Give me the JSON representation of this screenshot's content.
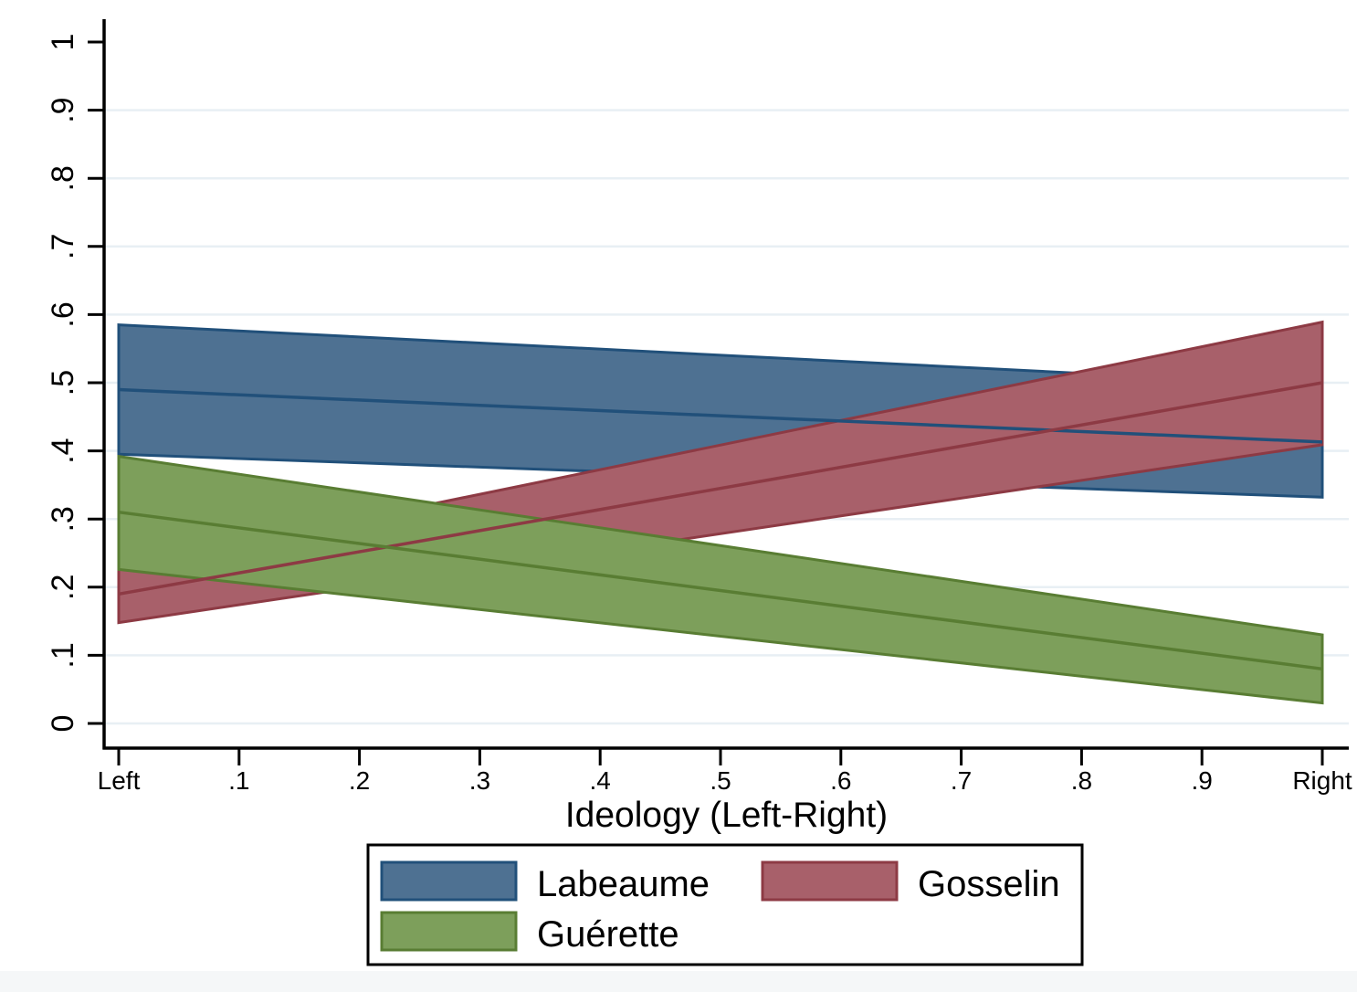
{
  "chart_data": {
    "type": "area",
    "title": "",
    "xlabel": "Ideology (Left-Right)",
    "ylabel": "",
    "xlim": [
      0,
      1
    ],
    "ylim": [
      0,
      1
    ],
    "x": [
      0,
      1
    ],
    "x_ticks": [
      {
        "v": 0.0,
        "label": "Left"
      },
      {
        "v": 0.1,
        "label": ".1"
      },
      {
        "v": 0.2,
        "label": ".2"
      },
      {
        "v": 0.3,
        "label": ".3"
      },
      {
        "v": 0.4,
        "label": ".4"
      },
      {
        "v": 0.5,
        "label": ".5"
      },
      {
        "v": 0.6,
        "label": ".6"
      },
      {
        "v": 0.7,
        "label": ".7"
      },
      {
        "v": 0.8,
        "label": ".8"
      },
      {
        "v": 0.9,
        "label": ".9"
      },
      {
        "v": 1.0,
        "label": "Right"
      }
    ],
    "y_ticks": [
      {
        "v": 0.0,
        "label": "0"
      },
      {
        "v": 0.1,
        "label": ".1"
      },
      {
        "v": 0.2,
        "label": ".2"
      },
      {
        "v": 0.3,
        "label": ".3"
      },
      {
        "v": 0.4,
        "label": ".4"
      },
      {
        "v": 0.5,
        "label": ".5"
      },
      {
        "v": 0.6,
        "label": ".6"
      },
      {
        "v": 0.7,
        "label": ".7"
      },
      {
        "v": 0.8,
        "label": ".8"
      },
      {
        "v": 0.9,
        "label": ".9"
      },
      {
        "v": 1.0,
        "label": "1"
      }
    ],
    "grid": {
      "axis": "y",
      "values": [
        0.0,
        0.1,
        0.2,
        0.3,
        0.4,
        0.5,
        0.6,
        0.7,
        0.8,
        0.9
      ],
      "color": "#e8eff4"
    },
    "axis_color": "#000000",
    "series": [
      {
        "name": "Labeaume",
        "slug": "labeaume",
        "center": [
          0.49,
          0.413
        ],
        "upper": [
          0.585,
          0.496
        ],
        "lower": [
          0.395,
          0.332
        ],
        "fill": "#4e7192",
        "stroke": "#21507a"
      },
      {
        "name": "Gosselin",
        "slug": "gosselin",
        "center": [
          0.19,
          0.5
        ],
        "upper": [
          0.228,
          0.589
        ],
        "lower": [
          0.148,
          0.409
        ],
        "fill": "#a8606a",
        "stroke": "#8d3a44"
      },
      {
        "name": "Guérette",
        "slug": "guerette",
        "center": [
          0.31,
          0.08
        ],
        "upper": [
          0.392,
          0.13
        ],
        "lower": [
          0.226,
          0.03
        ],
        "fill": "#7d9f5b",
        "stroke": "#597d33"
      }
    ],
    "legend": {
      "position": "bottom",
      "columns": 2,
      "entries": [
        "Labeaume",
        "Gosselin",
        "Guérette"
      ]
    },
    "footer_strip_color": "#f5f7f8"
  }
}
